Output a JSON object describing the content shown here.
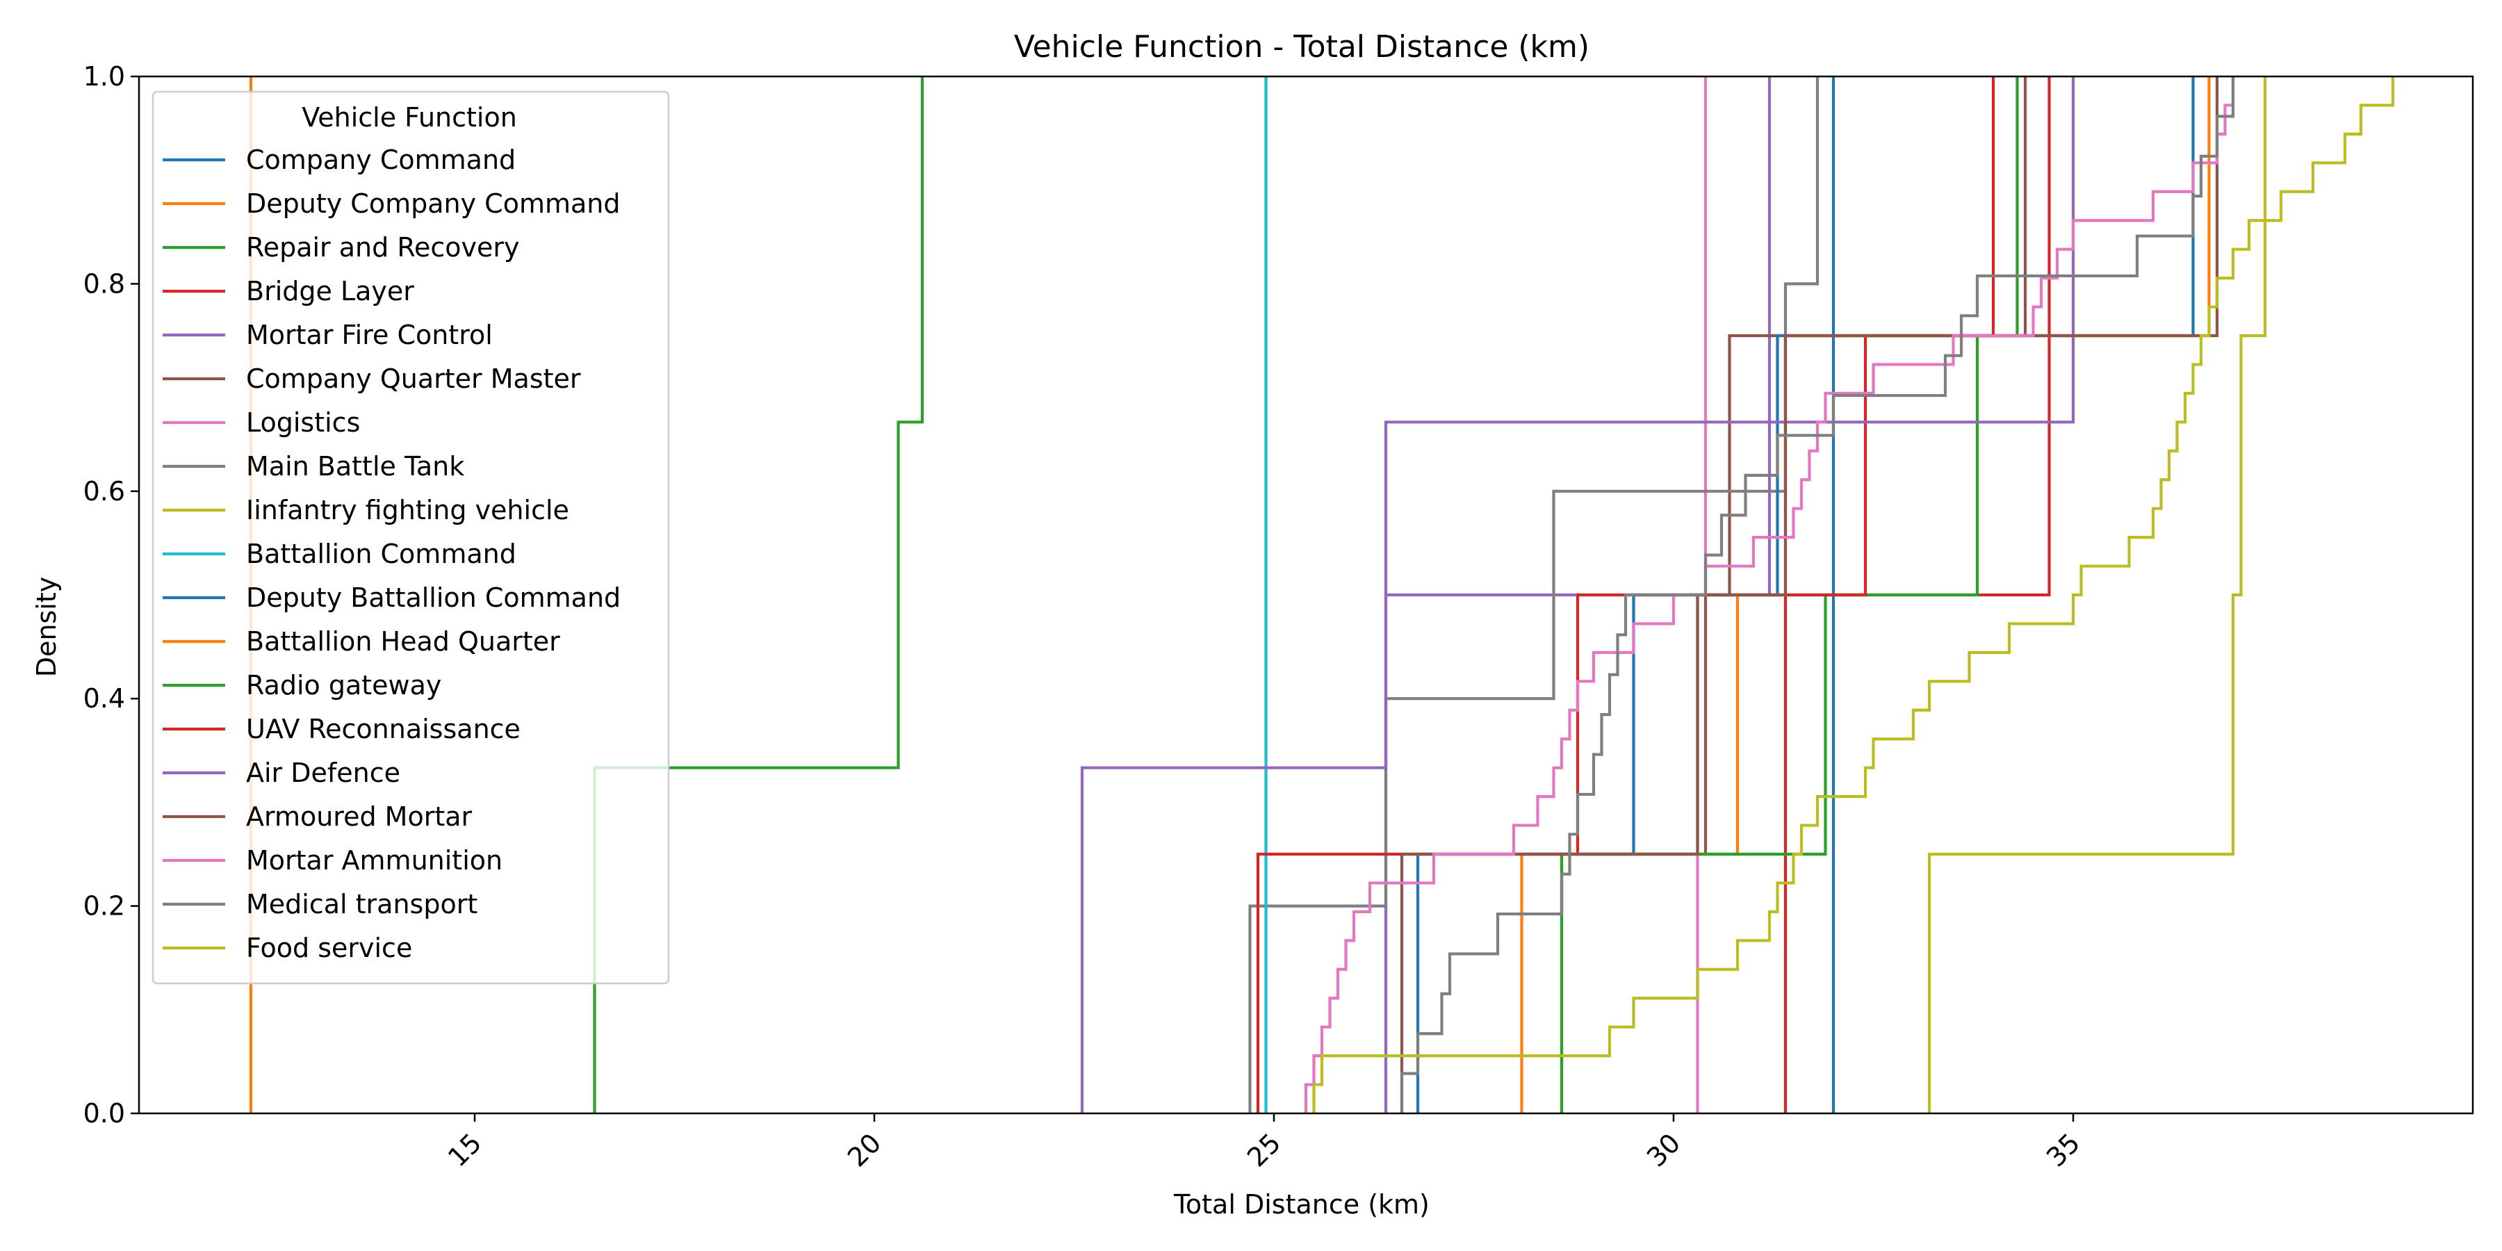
{
  "chart_data": {
    "type": "line",
    "title": "Vehicle Function - Total Distance (km)",
    "xlabel": "Total Distance (km)",
    "ylabel": "Density",
    "xlim": [
      10.8,
      40.0
    ],
    "ylim": [
      0.0,
      1.0
    ],
    "x_ticks": [
      {
        "value": 15,
        "label": "15"
      },
      {
        "value": 20,
        "label": "20"
      },
      {
        "value": 25,
        "label": "25"
      },
      {
        "value": 30,
        "label": "30"
      },
      {
        "value": 35,
        "label": "35"
      }
    ],
    "y_ticks": [
      {
        "value": 0.0,
        "label": "0.0"
      },
      {
        "value": 0.2,
        "label": "0.2"
      },
      {
        "value": 0.4,
        "label": "0.4"
      },
      {
        "value": 0.6,
        "label": "0.6"
      },
      {
        "value": 0.8,
        "label": "0.8"
      },
      {
        "value": 1.0,
        "label": "1.0"
      }
    ],
    "grid": false,
    "legend": {
      "title": "Vehicle Function",
      "placement": "upper-left"
    },
    "series": [
      {
        "name": "Company Command",
        "color": "#1f77b4",
        "x": [
          32.0,
          32.0
        ]
      },
      {
        "name": "Deputy Company Command",
        "color": "#ff7f0e",
        "x": [
          12.2,
          12.2
        ]
      },
      {
        "name": "Repair and Recovery",
        "color": "#2ca02c",
        "x": [
          16.5,
          20.3,
          20.6
        ]
      },
      {
        "name": "Bridge Layer",
        "color": "#d62728",
        "x": [
          31.4,
          34.7
        ]
      },
      {
        "name": "Mortar Fire Control",
        "color": "#9467bd",
        "x": [
          26.4,
          31.2
        ]
      },
      {
        "name": "Company Quarter Master",
        "color": "#8c564b",
        "x": [
          28.6,
          30.4,
          30.7,
          34.4
        ]
      },
      {
        "name": "Logistics",
        "color": "#e377c2",
        "x": [
          30.3,
          30.4
        ]
      },
      {
        "name": "Main Battle Tank",
        "color": "#7f7f7f",
        "x": [
          24.7,
          26.4,
          28.5,
          31.4,
          31.8
        ]
      },
      {
        "name": "Iinfantry fighting vehicle",
        "color": "#bcbd22",
        "x": [
          33.2,
          37.0,
          37.1,
          37.4
        ]
      },
      {
        "name": "Battallion Command",
        "color": "#17becf",
        "x": [
          24.9,
          24.9
        ]
      },
      {
        "name": "Deputy Battallion Command",
        "color": "#1f77b4",
        "x": [
          26.8,
          29.5,
          31.3,
          36.5
        ]
      },
      {
        "name": "Battallion Head Quarter",
        "color": "#ff7f0e",
        "x": [
          28.1,
          30.8,
          31.4,
          36.7
        ]
      },
      {
        "name": "Radio gateway",
        "color": "#2ca02c",
        "x": [
          28.6,
          31.9,
          33.8,
          34.3
        ]
      },
      {
        "name": "UAV Reconnaissance",
        "color": "#d62728",
        "x": [
          24.8,
          28.8,
          32.4,
          34.0
        ]
      },
      {
        "name": "Air Defence",
        "color": "#9467bd",
        "x": [
          22.6,
          26.4,
          35.0
        ]
      },
      {
        "name": "Armoured Mortar",
        "color": "#8c564b",
        "x": [
          26.6,
          30.3,
          31.4,
          36.8
        ]
      },
      {
        "name": "Mortar Ammunition",
        "color": "#e377c2",
        "x": [
          25.4,
          25.5,
          25.6,
          25.7,
          25.8,
          25.9,
          26.0,
          26.2,
          27.0,
          28.0,
          28.3,
          28.5,
          28.6,
          28.7,
          28.8,
          29.0,
          29.5,
          30.0,
          30.4,
          31.0,
          31.5,
          31.6,
          31.7,
          31.8,
          31.9,
          32.5,
          33.5,
          34.5,
          34.6,
          34.8,
          35.0,
          36.0,
          36.5,
          36.8,
          36.9,
          37.0
        ]
      },
      {
        "name": "Medical transport",
        "color": "#7f7f7f",
        "x": [
          26.6,
          26.8,
          27.1,
          27.2,
          27.8,
          28.6,
          28.7,
          28.8,
          29.0,
          29.1,
          29.2,
          29.3,
          29.4,
          30.4,
          30.6,
          30.9,
          31.3,
          32.0,
          33.4,
          33.6,
          33.8,
          35.8,
          36.5,
          36.6,
          36.8,
          37.0
        ]
      },
      {
        "name": "Food service",
        "color": "#bcbd22",
        "x": [
          25.5,
          25.6,
          29.2,
          29.5,
          30.3,
          30.8,
          31.2,
          31.3,
          31.5,
          31.6,
          31.8,
          32.4,
          32.5,
          33.0,
          33.2,
          33.7,
          34.2,
          35.0,
          35.1,
          35.7,
          36.0,
          36.1,
          36.2,
          36.3,
          36.4,
          36.5,
          36.6,
          36.7,
          36.8,
          37.0,
          37.2,
          37.6,
          38.0,
          38.4,
          38.6,
          39.0
        ]
      }
    ]
  }
}
